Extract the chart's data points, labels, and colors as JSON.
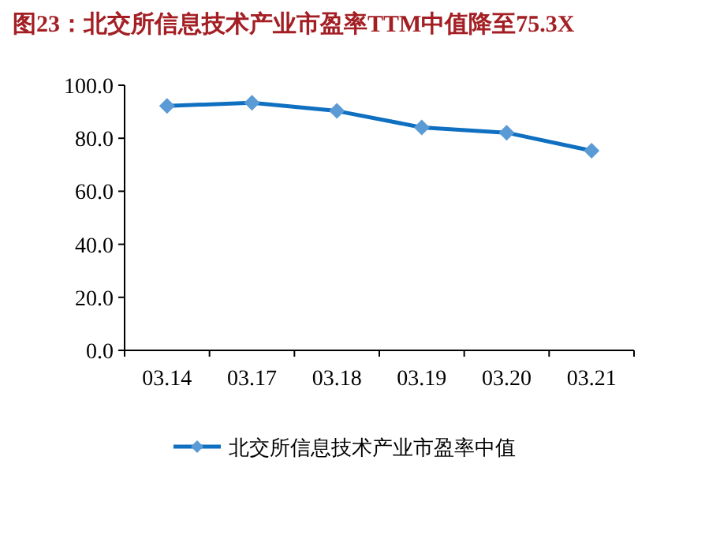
{
  "chart_data": {
    "type": "line",
    "title": "图23：北交所信息技术产业市盈率TTM中值降至75.3X",
    "categories": [
      "03.14",
      "03.17",
      "03.18",
      "03.19",
      "03.20",
      "03.21"
    ],
    "series": [
      {
        "name": "北交所信息技术产业市盈率中值",
        "color": "#0f6fc0",
        "values": [
          92.2,
          93.4,
          90.3,
          84.1,
          82.1,
          75.3
        ]
      }
    ],
    "ylim": [
      0,
      100
    ],
    "yticks": [
      {
        "value": 0,
        "label": "0.0"
      },
      {
        "value": 20,
        "label": "20.0"
      },
      {
        "value": 40,
        "label": "40.0"
      },
      {
        "value": 60,
        "label": "60.0"
      },
      {
        "value": 80,
        "label": "80.0"
      },
      {
        "value": 100,
        "label": "100.0"
      }
    ],
    "marker": "diamond",
    "legend": "bottom",
    "grid": false
  }
}
